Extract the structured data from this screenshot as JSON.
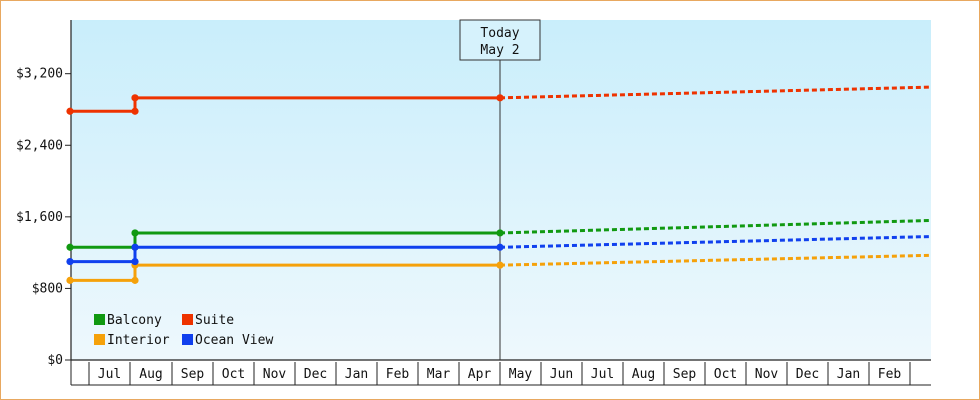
{
  "chart_data": {
    "type": "line",
    "title": "",
    "xlabel": "",
    "ylabel": "",
    "ylim": [
      0,
      3800
    ],
    "y_ticks": [
      0,
      800,
      1600,
      2400,
      3200
    ],
    "y_tick_labels": [
      "$0",
      "$800",
      "$1,600",
      "$2,400",
      "$3,200"
    ],
    "x_months": [
      "Jul",
      "Aug",
      "Sep",
      "Oct",
      "Nov",
      "Dec",
      "Jan",
      "Feb",
      "Mar",
      "Apr",
      "May",
      "Jun",
      "Jul",
      "Aug",
      "Sep",
      "Oct",
      "Nov",
      "Dec",
      "Jan",
      "Feb"
    ],
    "today_label": "Today",
    "today_date": "May 2",
    "legend": {
      "placement": "bottom-left"
    },
    "grid": false,
    "series": [
      {
        "name": "Balcony",
        "color": "#119911",
        "history": [
          [
            0,
            1260
          ],
          [
            1.6,
            1260
          ],
          [
            1.6,
            1420
          ],
          [
            10.7,
            1420
          ]
        ],
        "forecast_end": 1560
      },
      {
        "name": "Suite",
        "color": "#ee3300",
        "history": [
          [
            0,
            2780
          ],
          [
            1.6,
            2780
          ],
          [
            1.6,
            2930
          ],
          [
            10.7,
            2930
          ]
        ],
        "forecast_end": 3050
      },
      {
        "name": "Interior",
        "color": "#f5a10a",
        "history": [
          [
            0,
            890
          ],
          [
            1.6,
            890
          ],
          [
            1.6,
            1060
          ],
          [
            10.7,
            1060
          ]
        ],
        "forecast_end": 1170
      },
      {
        "name": "Ocean View",
        "color": "#1040ee",
        "history": [
          [
            0,
            1100
          ],
          [
            1.6,
            1100
          ],
          [
            1.6,
            1260
          ],
          [
            10.7,
            1260
          ]
        ],
        "forecast_end": 1380
      }
    ]
  }
}
